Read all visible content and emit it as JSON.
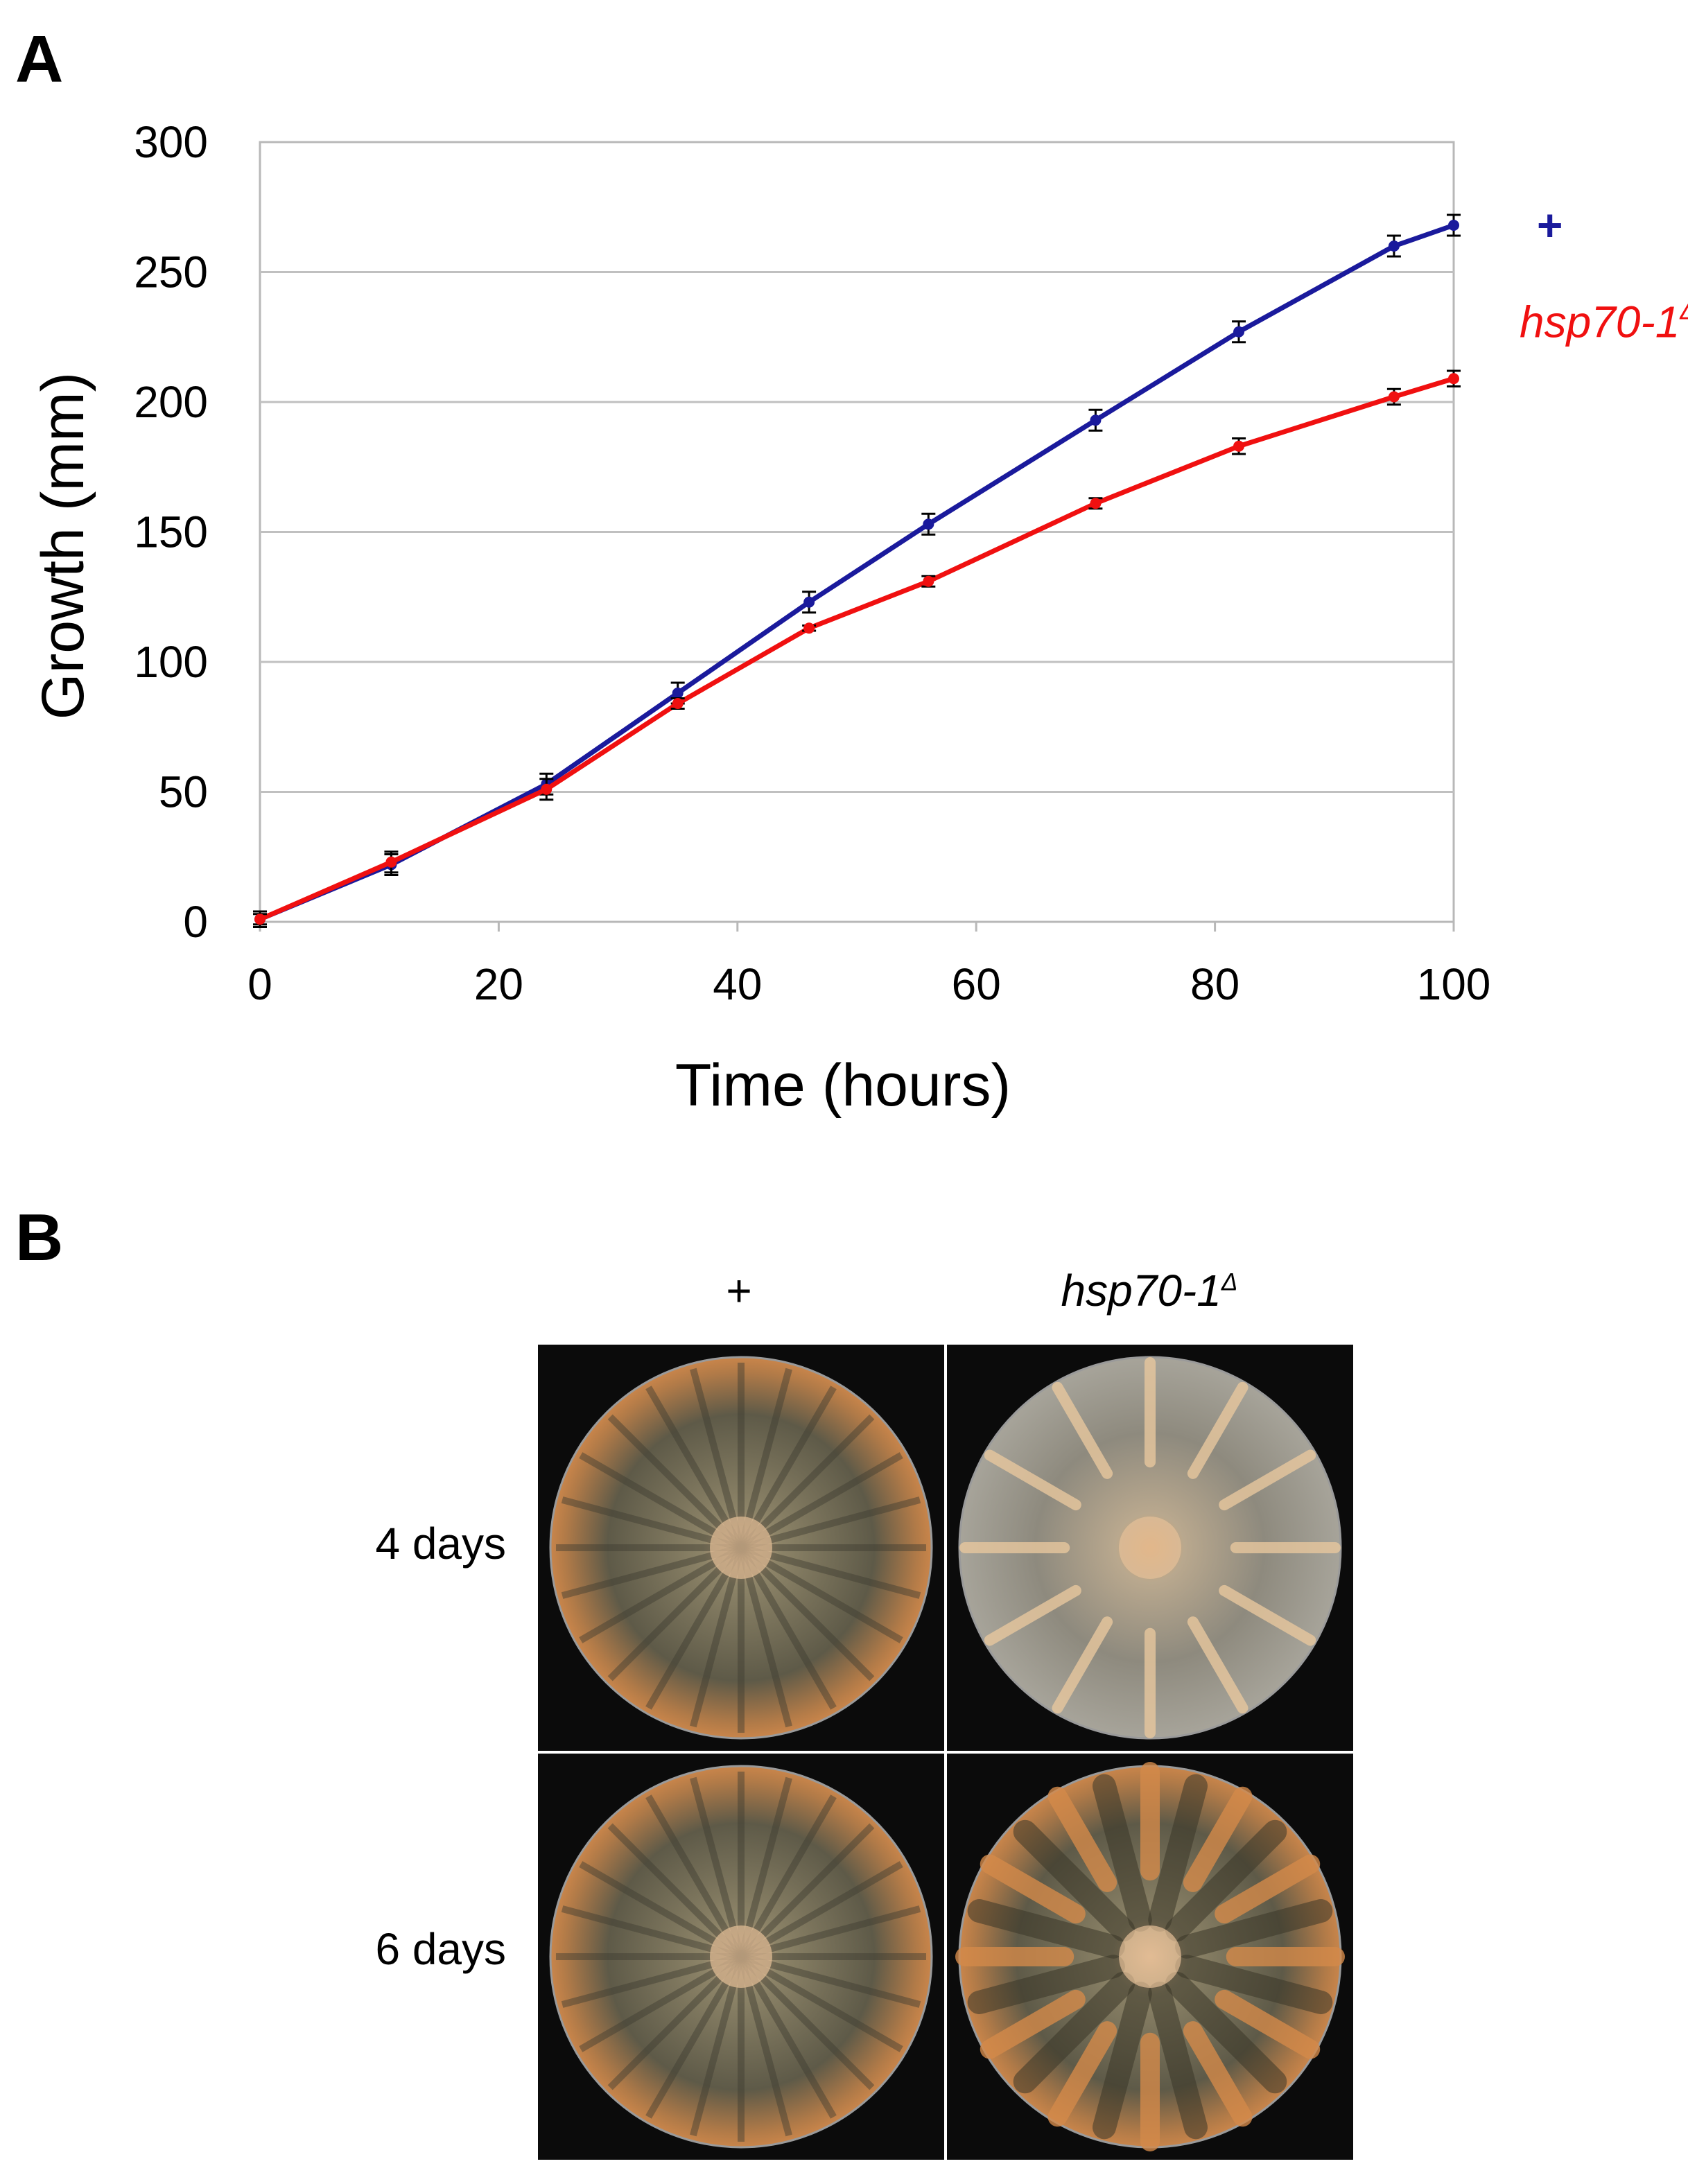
{
  "panel_a_label": "A",
  "panel_b_label": "B",
  "chart_data": {
    "type": "line",
    "xlabel": "Time (hours)",
    "ylabel": "Growth (mm)",
    "xlim": [
      0,
      100
    ],
    "ylim": [
      0,
      300
    ],
    "x_ticks": [
      "0",
      "20",
      "40",
      "60",
      "80",
      "100"
    ],
    "y_ticks": [
      "0",
      "50",
      "100",
      "150",
      "200",
      "250",
      "300"
    ],
    "grid": "horizontal",
    "series": [
      {
        "name": "+",
        "color": "#1a1a9c",
        "x": [
          0,
          11,
          24,
          35,
          46,
          56,
          70,
          82,
          95,
          100
        ],
        "values": [
          1,
          22,
          53,
          88,
          123,
          153,
          193,
          227,
          260,
          268
        ],
        "errors": [
          3,
          4,
          4,
          4,
          4,
          4,
          4,
          4,
          4,
          4
        ]
      },
      {
        "name": "hsp70-1",
        "name_superscript": "Δ",
        "color": "#f01010",
        "x": [
          0,
          11,
          24,
          35,
          46,
          56,
          70,
          82,
          95,
          100
        ],
        "values": [
          1,
          23,
          51,
          84,
          113,
          131,
          161,
          183,
          202,
          209
        ],
        "errors": [
          2,
          4,
          4,
          2,
          1,
          2,
          2,
          3,
          3,
          3
        ]
      }
    ]
  },
  "panel_b": {
    "columns": [
      {
        "label": "+",
        "italic": false
      },
      {
        "label": "hsp70-1",
        "superscript": "Δ",
        "italic": true
      }
    ],
    "rows": [
      "4 days",
      "6 days"
    ],
    "photos": [
      {
        "row": 0,
        "col": 0,
        "colony": "full"
      },
      {
        "row": 0,
        "col": 1,
        "colony": "sparse"
      },
      {
        "row": 1,
        "col": 0,
        "colony": "full"
      },
      {
        "row": 1,
        "col": 1,
        "colony": "sectored"
      }
    ]
  }
}
